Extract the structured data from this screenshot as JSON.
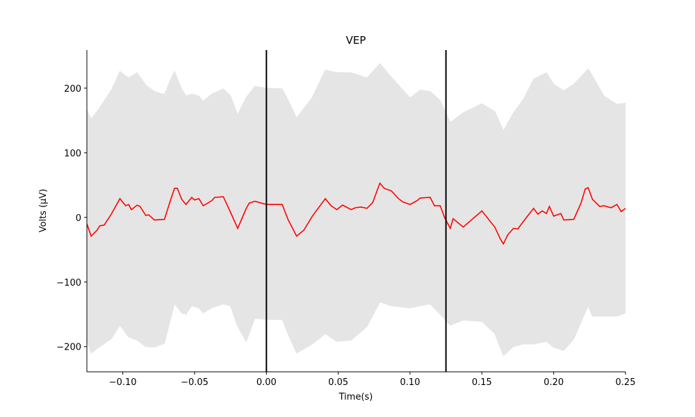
{
  "chart_data": {
    "type": "line",
    "title": "VEP",
    "x_label": "Time(s)",
    "y_label": "Volts (μV)",
    "x": [
      -0.125,
      -0.122,
      -0.118,
      -0.116,
      -0.113,
      -0.108,
      -0.102,
      -0.098,
      -0.096,
      -0.094,
      -0.09,
      -0.088,
      -0.084,
      -0.082,
      -0.078,
      -0.071,
      -0.067,
      -0.064,
      -0.062,
      -0.059,
      -0.056,
      -0.052,
      -0.05,
      -0.047,
      -0.044,
      -0.038,
      -0.036,
      -0.03,
      -0.025,
      -0.02,
      -0.014,
      -0.012,
      -0.008,
      0,
      0.011,
      0.015,
      0.021,
      0.026,
      0.032,
      0.041,
      0.045,
      0.049,
      0.053,
      0.059,
      0.062,
      0.066,
      0.07,
      0.074,
      0.079,
      0.082,
      0.087,
      0.092,
      0.095,
      0.1,
      0.105,
      0.107,
      0.114,
      0.117,
      0.121,
      0.124,
      0.128,
      0.13,
      0.137,
      0.15,
      0.159,
      0.163,
      0.165,
      0.168,
      0.172,
      0.175,
      0.179,
      0.186,
      0.189,
      0.192,
      0.195,
      0.197,
      0.2,
      0.205,
      0.207,
      0.214,
      0.219,
      0.222,
      0.224,
      0.227,
      0.232,
      0.235,
      0.24,
      0.244,
      0.247,
      0.25
    ],
    "values": [
      -10,
      -29,
      -20,
      -13,
      -12,
      5,
      29,
      18,
      20,
      12,
      19,
      17,
      3,
      4,
      -4,
      -3,
      25,
      45,
      45,
      28,
      20,
      31,
      27,
      29,
      18,
      26,
      31,
      32,
      8,
      -17,
      14,
      22,
      25,
      20,
      20,
      -3,
      -29,
      -20,
      2,
      29,
      18,
      12,
      19,
      12,
      15,
      16,
      14,
      23,
      53,
      45,
      41,
      29,
      24,
      20,
      26,
      30,
      31,
      18,
      18,
      0,
      -17,
      -2,
      -15,
      10,
      -15,
      -34,
      -41,
      -27,
      -17,
      -18,
      -6,
      14,
      5,
      10,
      6,
      17,
      2,
      6,
      -4,
      -3,
      22,
      44,
      46,
      28,
      17,
      18,
      15,
      20,
      9,
      14
    ],
    "color": "#ff0000",
    "band": {
      "color": "#e5e5e5",
      "x": [
        -0.125,
        -0.122,
        -0.116,
        -0.108,
        -0.102,
        -0.096,
        -0.09,
        -0.084,
        -0.078,
        -0.071,
        -0.067,
        -0.064,
        -0.059,
        -0.056,
        -0.052,
        -0.047,
        -0.044,
        -0.038,
        -0.03,
        -0.025,
        -0.02,
        -0.014,
        -0.008,
        0,
        0.011,
        0.015,
        0.021,
        0.032,
        0.041,
        0.049,
        0.059,
        0.07,
        0.079,
        0.087,
        0.1,
        0.107,
        0.114,
        0.121,
        0.128,
        0.137,
        0.15,
        0.159,
        0.165,
        0.172,
        0.179,
        0.186,
        0.195,
        0.2,
        0.207,
        0.214,
        0.224,
        0.227,
        0.235,
        0.244,
        0.25
      ],
      "upper": [
        167,
        152,
        170,
        197,
        226,
        216,
        224,
        205,
        195,
        190,
        212,
        226,
        199,
        188,
        191,
        188,
        180,
        191,
        199,
        188,
        159,
        186,
        203,
        200,
        199,
        182,
        154,
        186,
        228,
        224,
        224,
        216,
        238,
        217,
        185,
        197,
        195,
        181,
        147,
        162,
        176,
        164,
        134,
        162,
        183,
        214,
        224,
        206,
        196,
        206,
        230,
        219,
        188,
        175,
        177
      ],
      "lower": [
        -192,
        -210,
        -200,
        -188,
        -167,
        -185,
        -190,
        -200,
        -201,
        -195,
        -160,
        -134,
        -148,
        -150,
        -137,
        -140,
        -148,
        -140,
        -134,
        -137,
        -169,
        -192,
        -156,
        -158,
        -158,
        -180,
        -210,
        -196,
        -180,
        -192,
        -190,
        -169,
        -131,
        -137,
        -140,
        -137,
        -134,
        -150,
        -167,
        -159,
        -161,
        -180,
        -214,
        -200,
        -196,
        -196,
        -192,
        -201,
        -206,
        -188,
        -137,
        -153,
        -153,
        -153,
        -148
      ]
    },
    "vlines": [
      0,
      0.125
    ],
    "vline_color": "#000000",
    "xlim": [
      -0.125,
      0.25
    ],
    "ylim": [
      -239,
      259
    ],
    "xticks": [
      {
        "value": -0.1,
        "label": "−0.10"
      },
      {
        "value": -0.05,
        "label": "−0.05"
      },
      {
        "value": 0,
        "label": "0.00"
      },
      {
        "value": 0.05,
        "label": "0.05"
      },
      {
        "value": 0.1,
        "label": "0.10"
      },
      {
        "value": 0.15,
        "label": "0.15"
      },
      {
        "value": 0.2,
        "label": "0.20"
      },
      {
        "value": 0.25,
        "label": "0.25"
      }
    ],
    "yticks": [
      {
        "value": -200,
        "label": "−200"
      },
      {
        "value": -100,
        "label": "−100"
      },
      0,
      100,
      200
    ]
  }
}
